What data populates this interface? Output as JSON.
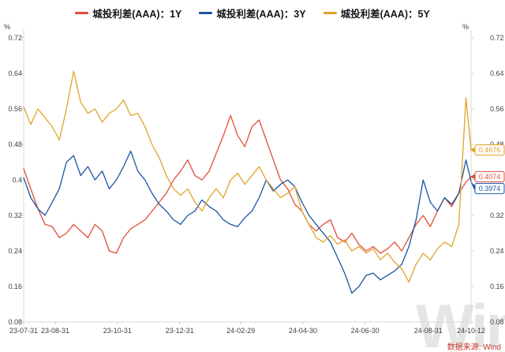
{
  "axis": {
    "unit": "%",
    "y_ticks": [
      "0.72",
      "0.64",
      "0.56",
      "0.48",
      "0.4",
      "0.32",
      "0.24",
      "0.16",
      "0.08"
    ],
    "x_ticks": [
      {
        "label": "23-07-31",
        "day": 0
      },
      {
        "label": "23-08-31",
        "day": 31
      },
      {
        "label": "23-10-31",
        "day": 92
      },
      {
        "label": "23-12-31",
        "day": 153
      },
      {
        "label": "24-02-29",
        "day": 213
      },
      {
        "label": "24-04-30",
        "day": 274
      },
      {
        "label": "24-06-30",
        "day": 335
      },
      {
        "label": "24-08-31",
        "day": 397
      },
      {
        "label": "24-10-12",
        "day": 439
      }
    ]
  },
  "source": "数据来源: Wind",
  "watermark": "Wind",
  "chart_data": {
    "type": "line",
    "legend_position": "top",
    "ylim": [
      0.08,
      0.72
    ],
    "y_tick_step": 0.08,
    "y_unit": "%",
    "x_max_day": 439,
    "x_tick_labels": [
      "23-07-31",
      "23-08-31",
      "23-10-31",
      "23-12-31",
      "24-02-29",
      "24-04-30",
      "24-06-30",
      "24-08-31",
      "24-10-12"
    ],
    "days": [
      0,
      7,
      14,
      21,
      28,
      35,
      42,
      49,
      56,
      63,
      70,
      77,
      84,
      91,
      98,
      105,
      112,
      119,
      126,
      133,
      140,
      147,
      154,
      161,
      168,
      175,
      182,
      189,
      196,
      203,
      210,
      217,
      224,
      231,
      238,
      245,
      252,
      259,
      266,
      273,
      280,
      287,
      294,
      301,
      308,
      315,
      322,
      329,
      336,
      343,
      350,
      357,
      364,
      371,
      378,
      385,
      392,
      399,
      406,
      413,
      420,
      427,
      434,
      439
    ],
    "series": [
      {
        "id": "1y",
        "name": "城投利差(AAA)：1Y",
        "color": "#e14d38",
        "last_label": "0.4074",
        "values": [
          0.425,
          0.38,
          0.335,
          0.3,
          0.295,
          0.27,
          0.28,
          0.3,
          0.285,
          0.27,
          0.3,
          0.285,
          0.24,
          0.235,
          0.27,
          0.29,
          0.3,
          0.31,
          0.33,
          0.35,
          0.37,
          0.4,
          0.42,
          0.445,
          0.41,
          0.4,
          0.42,
          0.46,
          0.5,
          0.545,
          0.5,
          0.475,
          0.52,
          0.535,
          0.49,
          0.445,
          0.4,
          0.38,
          0.345,
          0.33,
          0.3,
          0.285,
          0.3,
          0.31,
          0.27,
          0.26,
          0.28,
          0.255,
          0.24,
          0.25,
          0.235,
          0.245,
          0.26,
          0.24,
          0.27,
          0.3,
          0.32,
          0.295,
          0.33,
          0.36,
          0.34,
          0.37,
          0.395,
          0.4074
        ]
      },
      {
        "id": "3y",
        "name": "城投利差(AAA)：3Y",
        "color": "#1b55a4",
        "last_label": "0.3974",
        "values": [
          0.405,
          0.36,
          0.335,
          0.32,
          0.35,
          0.38,
          0.44,
          0.455,
          0.41,
          0.43,
          0.4,
          0.42,
          0.38,
          0.4,
          0.43,
          0.465,
          0.42,
          0.4,
          0.37,
          0.345,
          0.33,
          0.31,
          0.3,
          0.32,
          0.33,
          0.355,
          0.34,
          0.33,
          0.31,
          0.3,
          0.295,
          0.315,
          0.33,
          0.36,
          0.4,
          0.375,
          0.39,
          0.4,
          0.385,
          0.35,
          0.32,
          0.3,
          0.28,
          0.26,
          0.225,
          0.19,
          0.145,
          0.16,
          0.185,
          0.19,
          0.175,
          0.185,
          0.195,
          0.21,
          0.25,
          0.31,
          0.4,
          0.35,
          0.33,
          0.36,
          0.345,
          0.37,
          0.445,
          0.3974
        ]
      },
      {
        "id": "5y",
        "name": "城投利差(AAA)：5Y",
        "color": "#e0a329",
        "last_label": "0.4676",
        "values": [
          0.565,
          0.525,
          0.56,
          0.54,
          0.52,
          0.49,
          0.56,
          0.645,
          0.575,
          0.55,
          0.56,
          0.53,
          0.55,
          0.56,
          0.58,
          0.545,
          0.55,
          0.52,
          0.48,
          0.45,
          0.41,
          0.38,
          0.365,
          0.38,
          0.35,
          0.33,
          0.36,
          0.38,
          0.36,
          0.4,
          0.415,
          0.39,
          0.41,
          0.43,
          0.4,
          0.38,
          0.36,
          0.37,
          0.385,
          0.33,
          0.3,
          0.27,
          0.26,
          0.275,
          0.255,
          0.265,
          0.24,
          0.25,
          0.235,
          0.245,
          0.22,
          0.235,
          0.215,
          0.2,
          0.17,
          0.21,
          0.235,
          0.22,
          0.245,
          0.26,
          0.25,
          0.3,
          0.585,
          0.4676
        ]
      }
    ]
  }
}
